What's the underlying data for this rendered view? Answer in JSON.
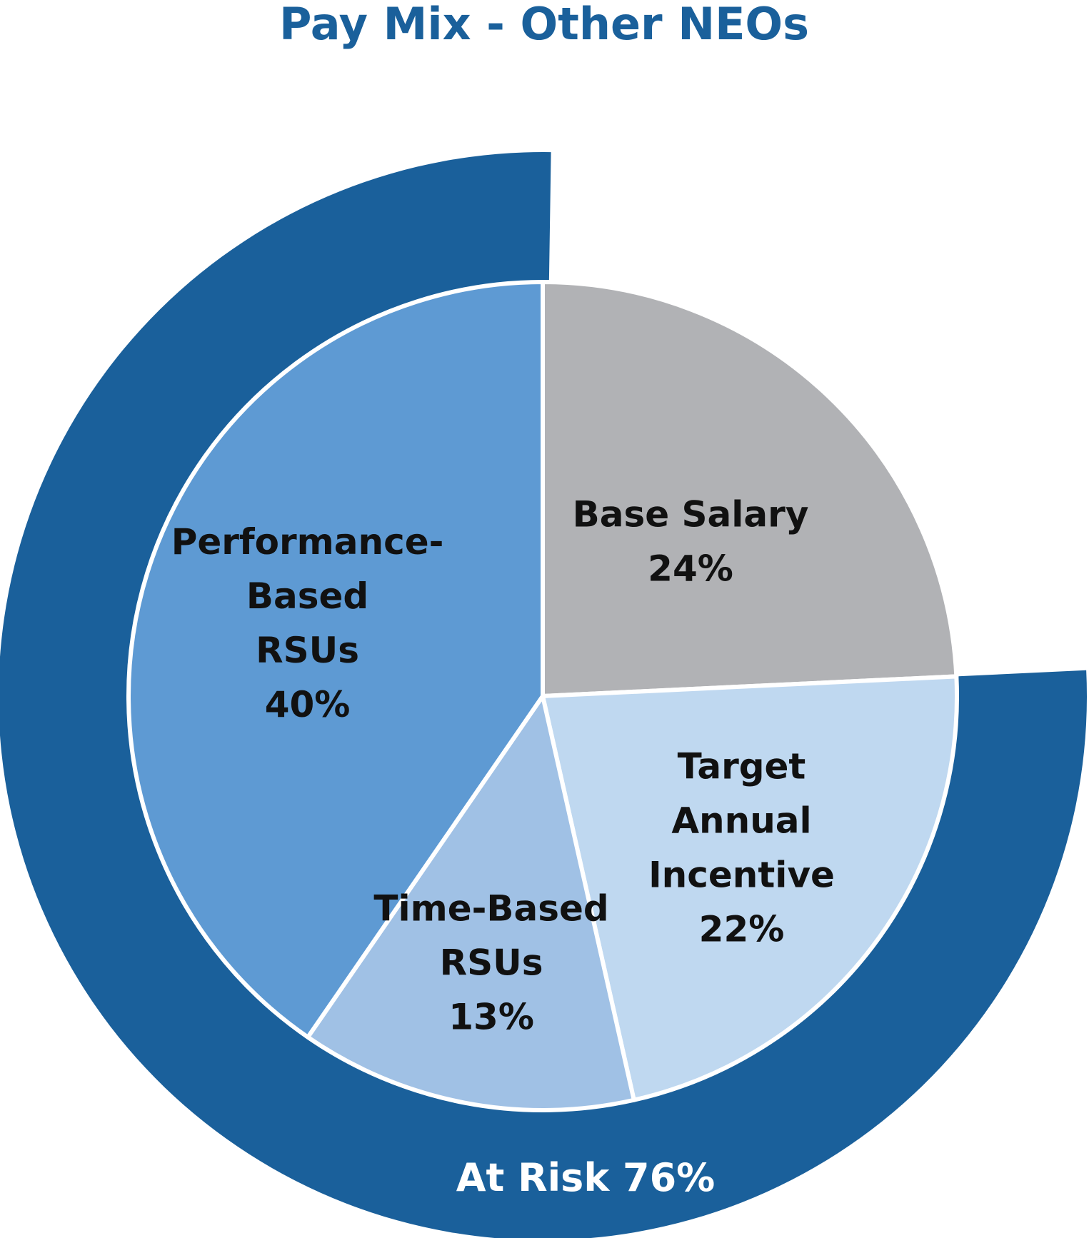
{
  "chart_data": {
    "type": "pie",
    "title": "Pay Mix - Other NEOs",
    "slices": [
      {
        "lines": [
          "Base Salary",
          "24%"
        ],
        "value": 24,
        "color": "#B1B2B5"
      },
      {
        "lines": [
          "Target",
          "Annual",
          "Incentive",
          "22%"
        ],
        "value": 22,
        "color": "#BFD8F0"
      },
      {
        "lines": [
          "Time-Based",
          "RSUs",
          "13%"
        ],
        "value": 13,
        "color": "#A0C1E5"
      },
      {
        "lines": [
          "Performance-",
          "Based",
          "RSUs",
          "40%"
        ],
        "value": 40,
        "color": "#5E9AD3"
      }
    ],
    "outer_ring": {
      "label": "At Risk 76%",
      "value": 76,
      "color": "#1A609B"
    },
    "colors": {
      "title": "#1A609B",
      "label_text": "#111111",
      "ring_label_text": "#FFFFFF",
      "separator": "#FFFFFF"
    }
  }
}
